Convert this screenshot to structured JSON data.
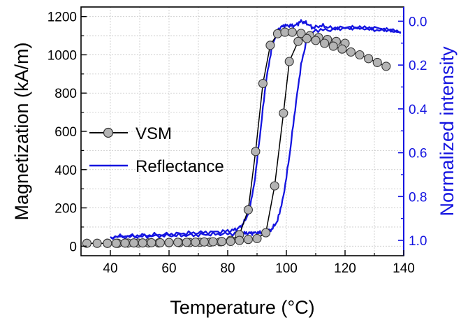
{
  "chart_data": {
    "type": "line",
    "xlabel": "Temperature (°C)",
    "ylabel": "Magnetization (kA/m)",
    "y2label": "Normalized intensity",
    "xlim": [
      30,
      140
    ],
    "ylim": [
      -50,
      1250
    ],
    "y2lim": [
      1.07,
      -0.065
    ],
    "y2_inverted": true,
    "grid": true,
    "legend_position": "middle-left",
    "x_ticks": [
      40,
      60,
      80,
      100,
      120,
      140
    ],
    "y_ticks": [
      0,
      200,
      400,
      600,
      800,
      1000,
      1200
    ],
    "y2_ticks": [
      0.0,
      0.2,
      0.4,
      0.6,
      0.8,
      1.0
    ],
    "x_tick_labels": [
      "40",
      "60",
      "80",
      "100",
      "120",
      "140"
    ],
    "y_tick_labels": [
      "0",
      "200",
      "400",
      "600",
      "800",
      "1000",
      "1200"
    ],
    "y2_tick_labels": [
      "0.0",
      "0.2",
      "0.4",
      "0.6",
      "0.8",
      "1.0"
    ],
    "series": [
      {
        "name": "VSM",
        "axis": "left",
        "color": "#000000",
        "marker_color": "#b4b4b4",
        "marker": "circle",
        "heating": {
          "x": [
            32,
            35.5,
            39,
            42.5,
            46,
            49.5,
            53,
            56.5,
            60,
            63.5,
            67,
            70.5,
            74,
            77.5,
            81,
            84,
            87,
            89.5,
            92,
            94.5,
            97,
            99.5,
            102,
            105,
            108,
            111,
            114,
            117,
            120
          ],
          "y": [
            15,
            15,
            15,
            15,
            16,
            16,
            17,
            17,
            18,
            18,
            19,
            20,
            21,
            23,
            30,
            60,
            190,
            495,
            850,
            1050,
            1110,
            1118,
            1118,
            1112,
            1100,
            1090,
            1080,
            1070,
            1060
          ]
        },
        "cooling": {
          "x": [
            134,
            131,
            128,
            125,
            122,
            119,
            116,
            113,
            110,
            107,
            104,
            101,
            99,
            96,
            93,
            90,
            87,
            84,
            81,
            78,
            75,
            72,
            69,
            66,
            63,
            60,
            57,
            54,
            51,
            48,
            45,
            42,
            39
          ],
          "y": [
            940,
            960,
            980,
            1000,
            1015,
            1030,
            1045,
            1060,
            1075,
            1085,
            1070,
            965,
            695,
            315,
            70,
            40,
            35,
            30,
            25,
            24,
            23,
            22,
            21,
            20,
            20,
            19,
            18,
            18,
            17,
            17,
            16,
            15,
            15
          ]
        }
      },
      {
        "name": "Reflectance",
        "axis": "right",
        "color": "#1414e0",
        "heating": {
          "x": [
            40,
            45,
            50,
            55,
            60,
            65,
            70,
            75,
            80,
            83,
            85,
            87,
            89,
            91,
            93,
            95,
            97,
            99,
            101,
            103,
            105,
            107,
            109,
            112,
            115,
            120,
            125,
            130,
            135,
            139
          ],
          "y": [
            0.985,
            0.98,
            0.978,
            0.975,
            0.972,
            0.968,
            0.965,
            0.962,
            0.958,
            0.95,
            0.93,
            0.88,
            0.75,
            0.52,
            0.28,
            0.12,
            0.04,
            0.02,
            0.02,
            0.02,
            0.0,
            0.01,
            0.03,
            0.02,
            0.03,
            0.03,
            0.03,
            0.03,
            0.04,
            0.05
          ]
        },
        "cooling": {
          "x": [
            139,
            135,
            130,
            125,
            120,
            115,
            110,
            107,
            105,
            103,
            101,
            99,
            97,
            95,
            93,
            91,
            89,
            87,
            85,
            80,
            75,
            70,
            65,
            60,
            55,
            50,
            45,
            40
          ],
          "y": [
            0.05,
            0.04,
            0.04,
            0.03,
            0.03,
            0.04,
            0.04,
            0.08,
            0.2,
            0.4,
            0.62,
            0.8,
            0.91,
            0.95,
            0.96,
            0.965,
            0.966,
            0.967,
            0.968,
            0.97,
            0.972,
            0.975,
            0.977,
            0.978,
            0.98,
            0.982,
            0.984,
            0.985
          ]
        }
      }
    ]
  },
  "legend": {
    "items": [
      {
        "label": "VSM"
      },
      {
        "label": "Reflectance"
      }
    ]
  }
}
